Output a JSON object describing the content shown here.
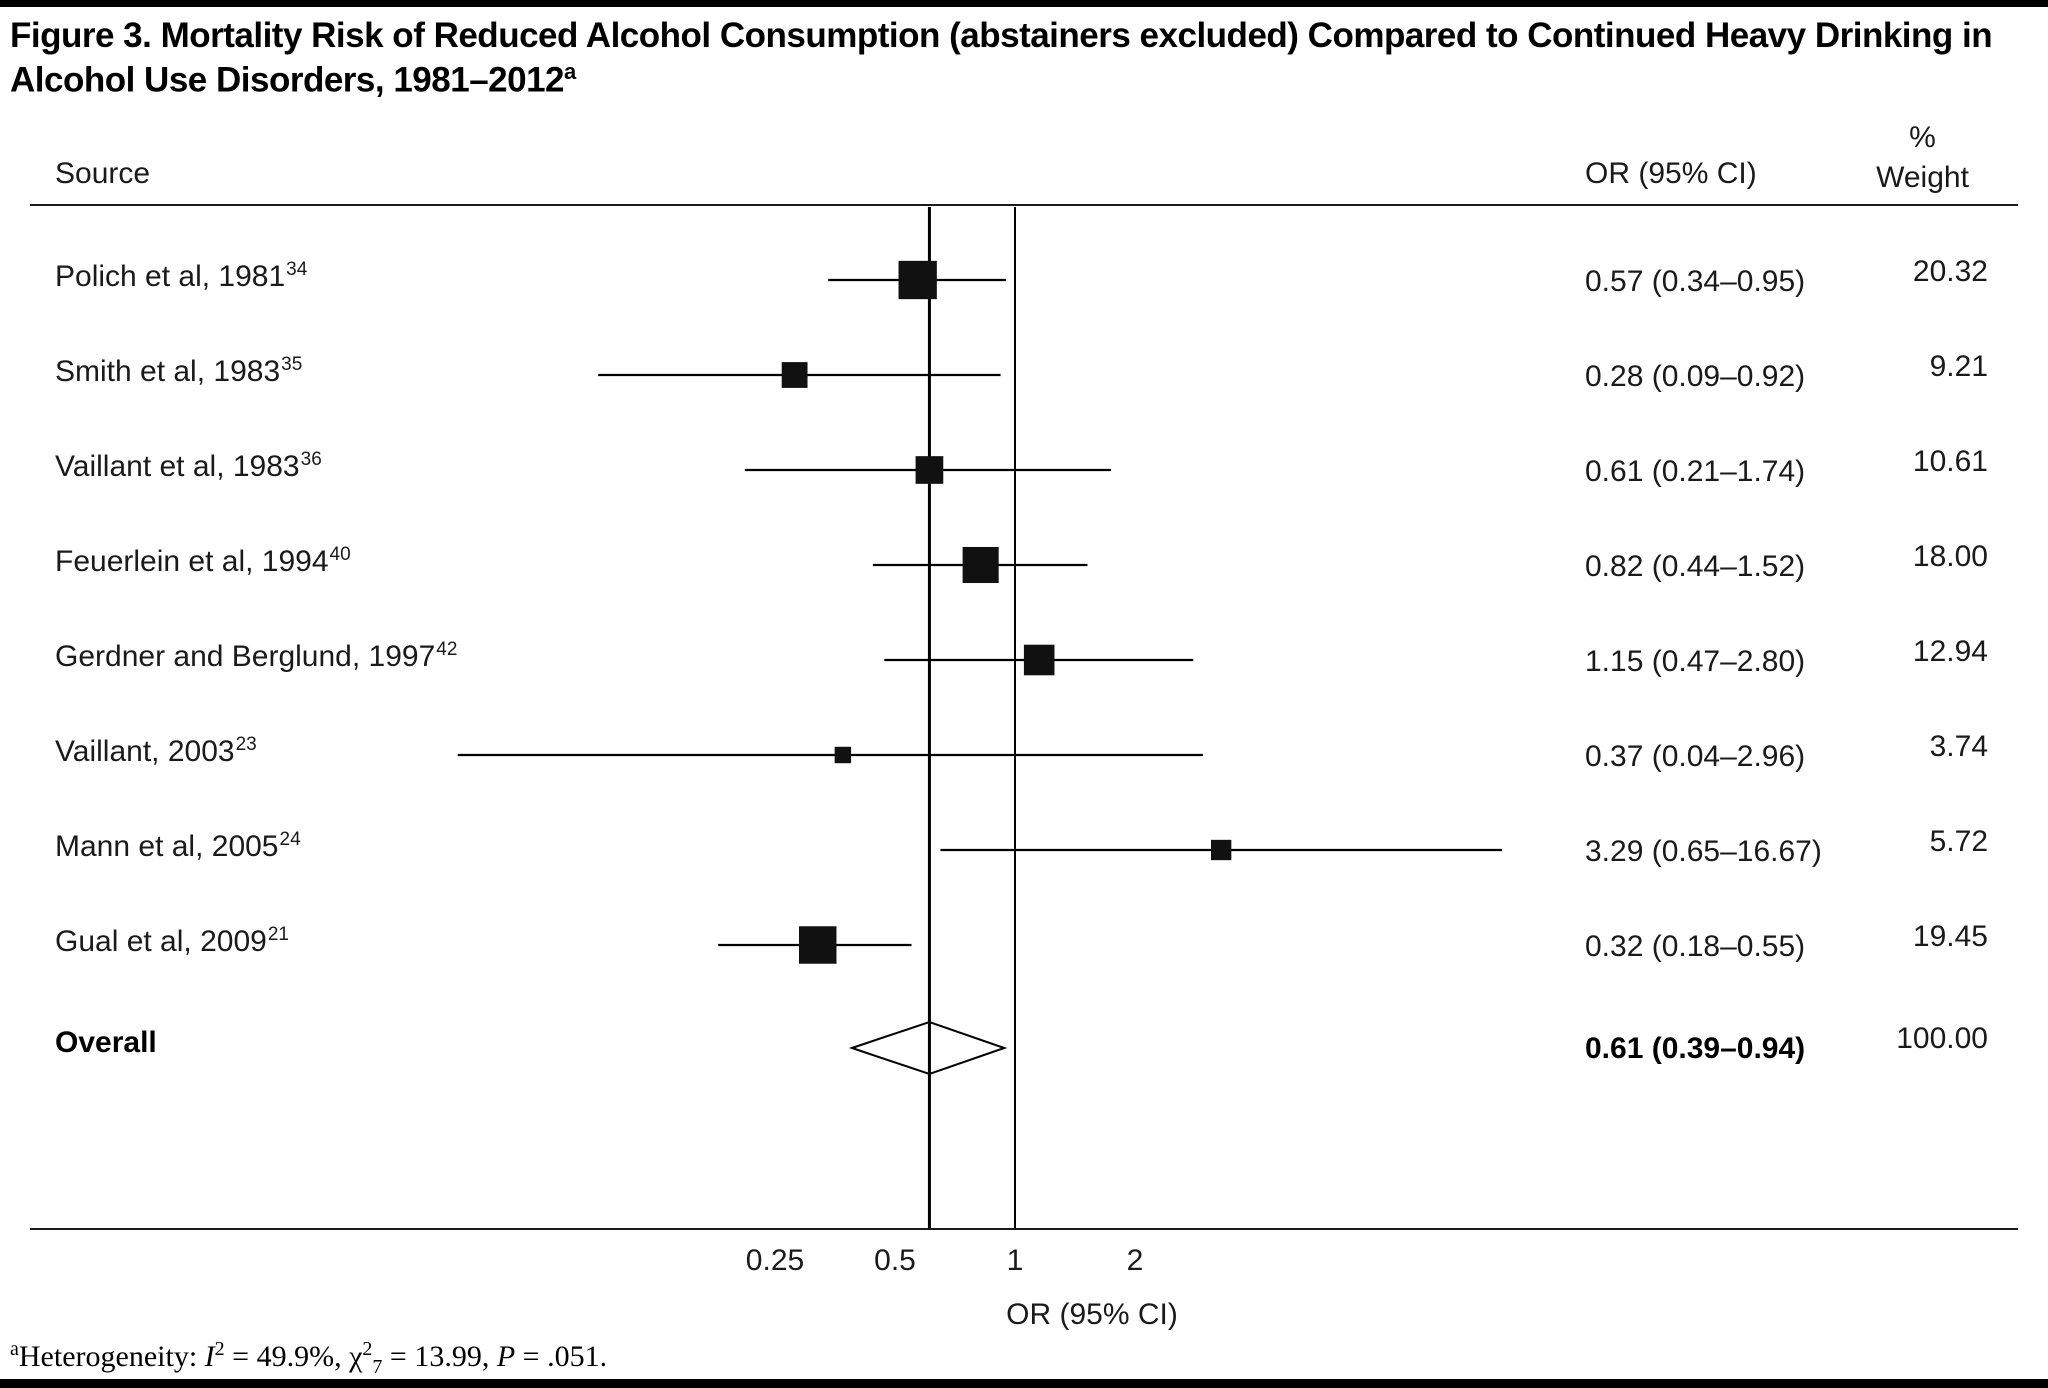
{
  "title": "Figure 3. Mortality Risk of Reduced Alcohol Consumption (abstainers excluded) Compared to Continued Heavy Drinking in Alcohol Use Disorders, 1981–2012",
  "title_superscript": "a",
  "colors": {
    "marker": "#111111",
    "line": "#000000",
    "text": "#1a1a1a"
  },
  "chart_data": {
    "type": "forest",
    "title": "Mortality Risk of Reduced Alcohol Consumption (abstainers excluded) Compared to Continued Heavy Drinking in Alcohol Use Disorders, 1981–2012",
    "columns": {
      "source": "Source",
      "or_ci": "OR (95% CI)",
      "weight_pct": "%",
      "weight": "Weight"
    },
    "x_axis": {
      "scale": "log",
      "ticks": [
        "0.25",
        "0.5",
        "1",
        "2"
      ],
      "tick_values": [
        0.25,
        0.5,
        1,
        2
      ],
      "label": "OR (95% CI)",
      "null_value": 1
    },
    "studies": [
      {
        "label": "Polich et al, 1981",
        "ref": "34",
        "or": 0.57,
        "ci_low": 0.34,
        "ci_high": 0.95,
        "or_text": "0.57 (0.34–0.95)",
        "weight": 20.32,
        "weight_text": "20.32"
      },
      {
        "label": "Smith et al, 1983",
        "ref": "35",
        "or": 0.28,
        "ci_low": 0.09,
        "ci_high": 0.92,
        "or_text": "0.28 (0.09–0.92)",
        "weight": 9.21,
        "weight_text": "9.21"
      },
      {
        "label": "Vaillant et al, 1983",
        "ref": "36",
        "or": 0.61,
        "ci_low": 0.21,
        "ci_high": 1.74,
        "or_text": "0.61 (0.21–1.74)",
        "weight": 10.61,
        "weight_text": "10.61"
      },
      {
        "label": "Feuerlein et al, 1994",
        "ref": "40",
        "or": 0.82,
        "ci_low": 0.44,
        "ci_high": 1.52,
        "or_text": "0.82 (0.44–1.52)",
        "weight": 18.0,
        "weight_text": "18.00"
      },
      {
        "label": "Gerdner and Berglund, 1997",
        "ref": "42",
        "or": 1.15,
        "ci_low": 0.47,
        "ci_high": 2.8,
        "or_text": "1.15 (0.47–2.80)",
        "weight": 12.94,
        "weight_text": "12.94"
      },
      {
        "label": "Vaillant, 2003",
        "ref": "23",
        "or": 0.37,
        "ci_low": 0.04,
        "ci_high": 2.96,
        "or_text": "0.37 (0.04–2.96)",
        "weight": 3.74,
        "weight_text": "3.74"
      },
      {
        "label": "Mann et al, 2005",
        "ref": "24",
        "or": 3.29,
        "ci_low": 0.65,
        "ci_high": 16.67,
        "or_text": "3.29 (0.65–16.67)",
        "weight": 5.72,
        "weight_text": "5.72"
      },
      {
        "label": "Gual et al, 2009",
        "ref": "21",
        "or": 0.32,
        "ci_low": 0.18,
        "ci_high": 0.55,
        "or_text": "0.32 (0.18–0.55)",
        "weight": 19.45,
        "weight_text": "19.45"
      }
    ],
    "overall": {
      "label": "Overall",
      "or": 0.61,
      "ci_low": 0.39,
      "ci_high": 0.94,
      "or_text": "0.61 (0.39–0.94)",
      "weight_text": "100.00"
    }
  },
  "footnote_parts": [
    {
      "t": "a",
      "s": "sup"
    },
    {
      "t": "Heterogeneity: ",
      "s": "plain"
    },
    {
      "t": "I",
      "s": "italic"
    },
    {
      "t": "2",
      "s": "sup"
    },
    {
      "t": " = 49.9%, ",
      "s": "plain"
    },
    {
      "t": "χ",
      "s": "plain"
    },
    {
      "t": "2",
      "s": "sup"
    },
    {
      "t": "7",
      "s": "sub"
    },
    {
      "t": " = 13.99, ",
      "s": "plain"
    },
    {
      "t": "P",
      "s": "italic"
    },
    {
      "t": " = .051.",
      "s": "plain"
    }
  ]
}
